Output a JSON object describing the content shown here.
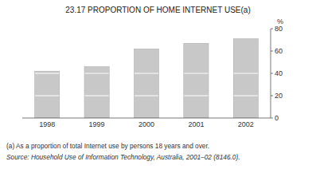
{
  "chart_data": {
    "type": "bar",
    "title": "23.17   PROPORTION OF HOME INTERNET USE(a)",
    "categories": [
      "1998",
      "1999",
      "2000",
      "2001",
      "2002"
    ],
    "values": [
      42,
      46,
      62,
      67,
      71
    ],
    "segment_breaks": [
      20,
      40
    ],
    "color": "#c8c8c8",
    "ylim": [
      0,
      80
    ],
    "yticks": [
      0,
      20,
      40,
      60,
      80
    ],
    "ylabel": "%",
    "notes": [
      "(a) As a proportion of total Internet use by persons 18 years and over.",
      "Source:  Household Use of Information Technology, Australia, 2001–02 (8146.0)."
    ],
    "grid": false
  }
}
